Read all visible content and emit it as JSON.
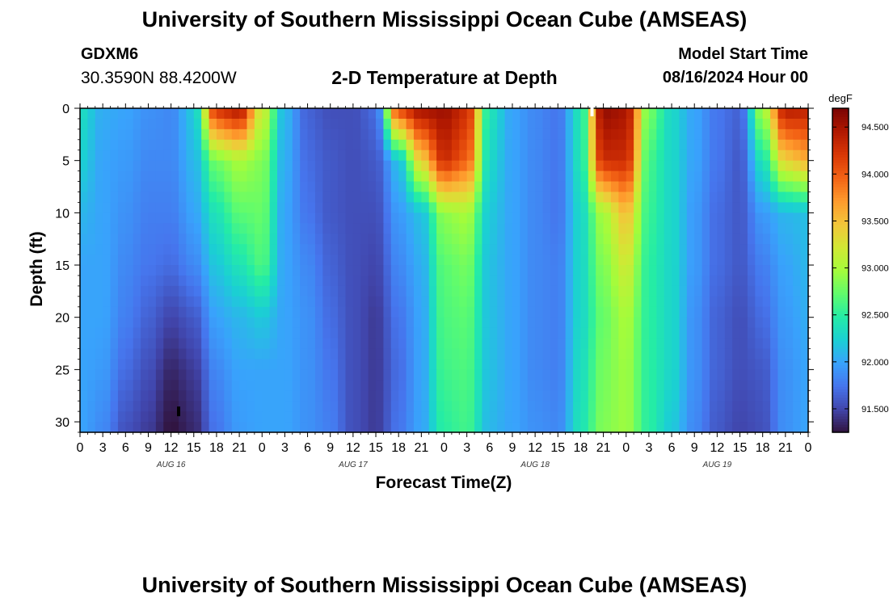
{
  "header": {
    "title": "University of Southern Mississippi Ocean Cube (AMSEAS)",
    "station": "GDXM6",
    "coords": "30.3590N  88.4200W",
    "subtitle": "2-D Temperature at Depth",
    "model_start_label": "Model Start Time",
    "model_start_value": "08/16/2024 Hour 00"
  },
  "footer": {
    "title": "University of Southern Mississippi Ocean Cube (AMSEAS)"
  },
  "colors": {
    "colormap": [
      "#30123b",
      "#4145ab",
      "#4675ed",
      "#39a2fc",
      "#1bcfd4",
      "#24eca6",
      "#61fc6c",
      "#a4fc3b",
      "#d1e834",
      "#f3c63a",
      "#fe9b2d",
      "#f36315",
      "#d93806",
      "#b11901",
      "#7a0403"
    ]
  },
  "chart_data": {
    "type": "heatmap",
    "xlabel": "Forecast Time(Z)",
    "ylabel": "Depth (ft)",
    "colorbar_label": "degF",
    "x_hours": [
      0,
      96
    ],
    "ylim": [
      0,
      31
    ],
    "clim": [
      91.25,
      94.7
    ],
    "x_tick_labels": [
      "0",
      "3",
      "6",
      "9",
      "12",
      "15",
      "18",
      "21",
      "0",
      "3",
      "6",
      "9",
      "12",
      "15",
      "18",
      "21",
      "0",
      "3",
      "6",
      "9",
      "12",
      "15",
      "18",
      "21",
      "0",
      "3",
      "6",
      "9",
      "12",
      "15",
      "18",
      "21",
      "0"
    ],
    "y_ticks": [
      0,
      5,
      10,
      15,
      20,
      25,
      30
    ],
    "date_labels": [
      {
        "hour": 12,
        "text": "AUG 16"
      },
      {
        "hour": 36,
        "text": "AUG 17"
      },
      {
        "hour": 60,
        "text": "AUG 18"
      },
      {
        "hour": 84,
        "text": "AUG 19"
      }
    ],
    "colorbar_ticks": [
      "91.500",
      "92.000",
      "92.500",
      "93.000",
      "93.500",
      "94.000",
      "94.500"
    ],
    "colorbar_values": [
      91.5,
      92.0,
      92.5,
      93.0,
      93.5,
      94.0,
      94.5
    ],
    "profile_depths": [
      0,
      5,
      10,
      15,
      20,
      25,
      31
    ],
    "profiles": [
      {
        "hour": 0,
        "temps": [
          92.35,
          92.25,
          92.1,
          92.0,
          92.0,
          92.0,
          92.0
        ]
      },
      {
        "hour": 3,
        "temps": [
          92.05,
          92.0,
          92.0,
          92.0,
          92.0,
          91.95,
          91.85
        ]
      },
      {
        "hour": 6,
        "temps": [
          92.0,
          91.95,
          91.9,
          91.85,
          91.8,
          91.7,
          91.55
        ]
      },
      {
        "hour": 9,
        "temps": [
          91.9,
          91.85,
          91.8,
          91.75,
          91.65,
          91.55,
          91.45
        ]
      },
      {
        "hour": 12,
        "temps": [
          91.85,
          91.85,
          91.8,
          91.7,
          91.5,
          91.35,
          91.25
        ]
      },
      {
        "hour": 15,
        "temps": [
          92.2,
          92.1,
          92.0,
          91.85,
          91.6,
          91.45,
          91.35
        ]
      },
      {
        "hour": 18,
        "temps": [
          94.3,
          92.8,
          92.4,
          92.2,
          92.0,
          91.85,
          91.75
        ]
      },
      {
        "hour": 21,
        "temps": [
          94.5,
          93.0,
          92.7,
          92.4,
          92.1,
          92.0,
          91.95
        ]
      },
      {
        "hour": 24,
        "temps": [
          93.2,
          92.85,
          92.75,
          92.65,
          92.2,
          92.0,
          92.0
        ]
      },
      {
        "hour": 27,
        "temps": [
          92.1,
          92.05,
          92.0,
          92.0,
          92.0,
          92.0,
          92.0
        ]
      },
      {
        "hour": 30,
        "temps": [
          91.65,
          91.7,
          91.75,
          91.85,
          91.9,
          91.9,
          91.9
        ]
      },
      {
        "hour": 33,
        "temps": [
          91.55,
          91.6,
          91.6,
          91.65,
          91.7,
          91.75,
          91.8
        ]
      },
      {
        "hour": 36,
        "temps": [
          91.55,
          91.55,
          91.55,
          91.55,
          91.55,
          91.55,
          91.55
        ]
      },
      {
        "hour": 39,
        "temps": [
          91.7,
          91.6,
          91.55,
          91.5,
          91.45,
          91.45,
          91.45
        ]
      },
      {
        "hour": 42,
        "temps": [
          94.2,
          92.15,
          91.95,
          91.85,
          91.75,
          91.7,
          91.75
        ]
      },
      {
        "hour": 45,
        "temps": [
          94.55,
          93.4,
          92.15,
          92.05,
          92.0,
          92.0,
          92.0
        ]
      },
      {
        "hour": 48,
        "temps": [
          94.55,
          94.3,
          92.9,
          92.7,
          92.65,
          92.6,
          92.5
        ]
      },
      {
        "hour": 51,
        "temps": [
          94.3,
          94.0,
          93.0,
          92.8,
          92.7,
          92.65,
          92.6
        ]
      },
      {
        "hour": 54,
        "temps": [
          92.4,
          92.3,
          92.2,
          92.15,
          92.15,
          92.15,
          92.1
        ]
      },
      {
        "hour": 57,
        "temps": [
          92.0,
          92.0,
          92.0,
          92.0,
          92.0,
          92.0,
          92.0
        ]
      },
      {
        "hour": 60,
        "temps": [
          91.85,
          91.85,
          91.85,
          91.85,
          91.85,
          91.85,
          91.9
        ]
      },
      {
        "hour": 63,
        "temps": [
          91.75,
          91.75,
          91.75,
          91.8,
          91.8,
          91.8,
          91.85
        ]
      },
      {
        "hour": 66,
        "temps": [
          92.4,
          92.4,
          92.3,
          92.3,
          92.3,
          92.35,
          92.4
        ]
      },
      {
        "hour": 69,
        "temps": [
          94.6,
          94.3,
          93.0,
          92.85,
          92.75,
          92.8,
          92.85
        ]
      },
      {
        "hour": 72,
        "temps": [
          94.5,
          94.3,
          93.5,
          93.2,
          93.0,
          92.95,
          92.95
        ]
      },
      {
        "hour": 75,
        "temps": [
          92.8,
          92.6,
          92.55,
          92.5,
          92.5,
          92.5,
          92.5
        ]
      },
      {
        "hour": 78,
        "temps": [
          92.3,
          92.3,
          92.3,
          92.3,
          92.3,
          92.3,
          92.2
        ]
      },
      {
        "hour": 81,
        "temps": [
          92.0,
          92.0,
          91.95,
          91.95,
          91.9,
          91.9,
          91.85
        ]
      },
      {
        "hour": 84,
        "temps": [
          91.75,
          91.75,
          91.7,
          91.7,
          91.65,
          91.65,
          91.6
        ]
      },
      {
        "hour": 87,
        "temps": [
          91.65,
          91.6,
          91.6,
          91.6,
          91.55,
          91.55,
          91.5
        ]
      },
      {
        "hour": 90,
        "temps": [
          93.0,
          92.4,
          91.95,
          91.8,
          91.7,
          91.6,
          91.55
        ]
      },
      {
        "hour": 93,
        "temps": [
          94.45,
          93.4,
          92.1,
          92.0,
          91.95,
          91.9,
          91.9
        ]
      },
      {
        "hour": 96,
        "temps": [
          94.4,
          93.6,
          92.15,
          92.1,
          92.05,
          92.0,
          92.0
        ]
      }
    ],
    "markers": [
      {
        "hour": 13,
        "depth": 29,
        "color": "#000000"
      },
      {
        "hour": 67.5,
        "depth": 0.3,
        "color": "#ffffff"
      }
    ]
  }
}
